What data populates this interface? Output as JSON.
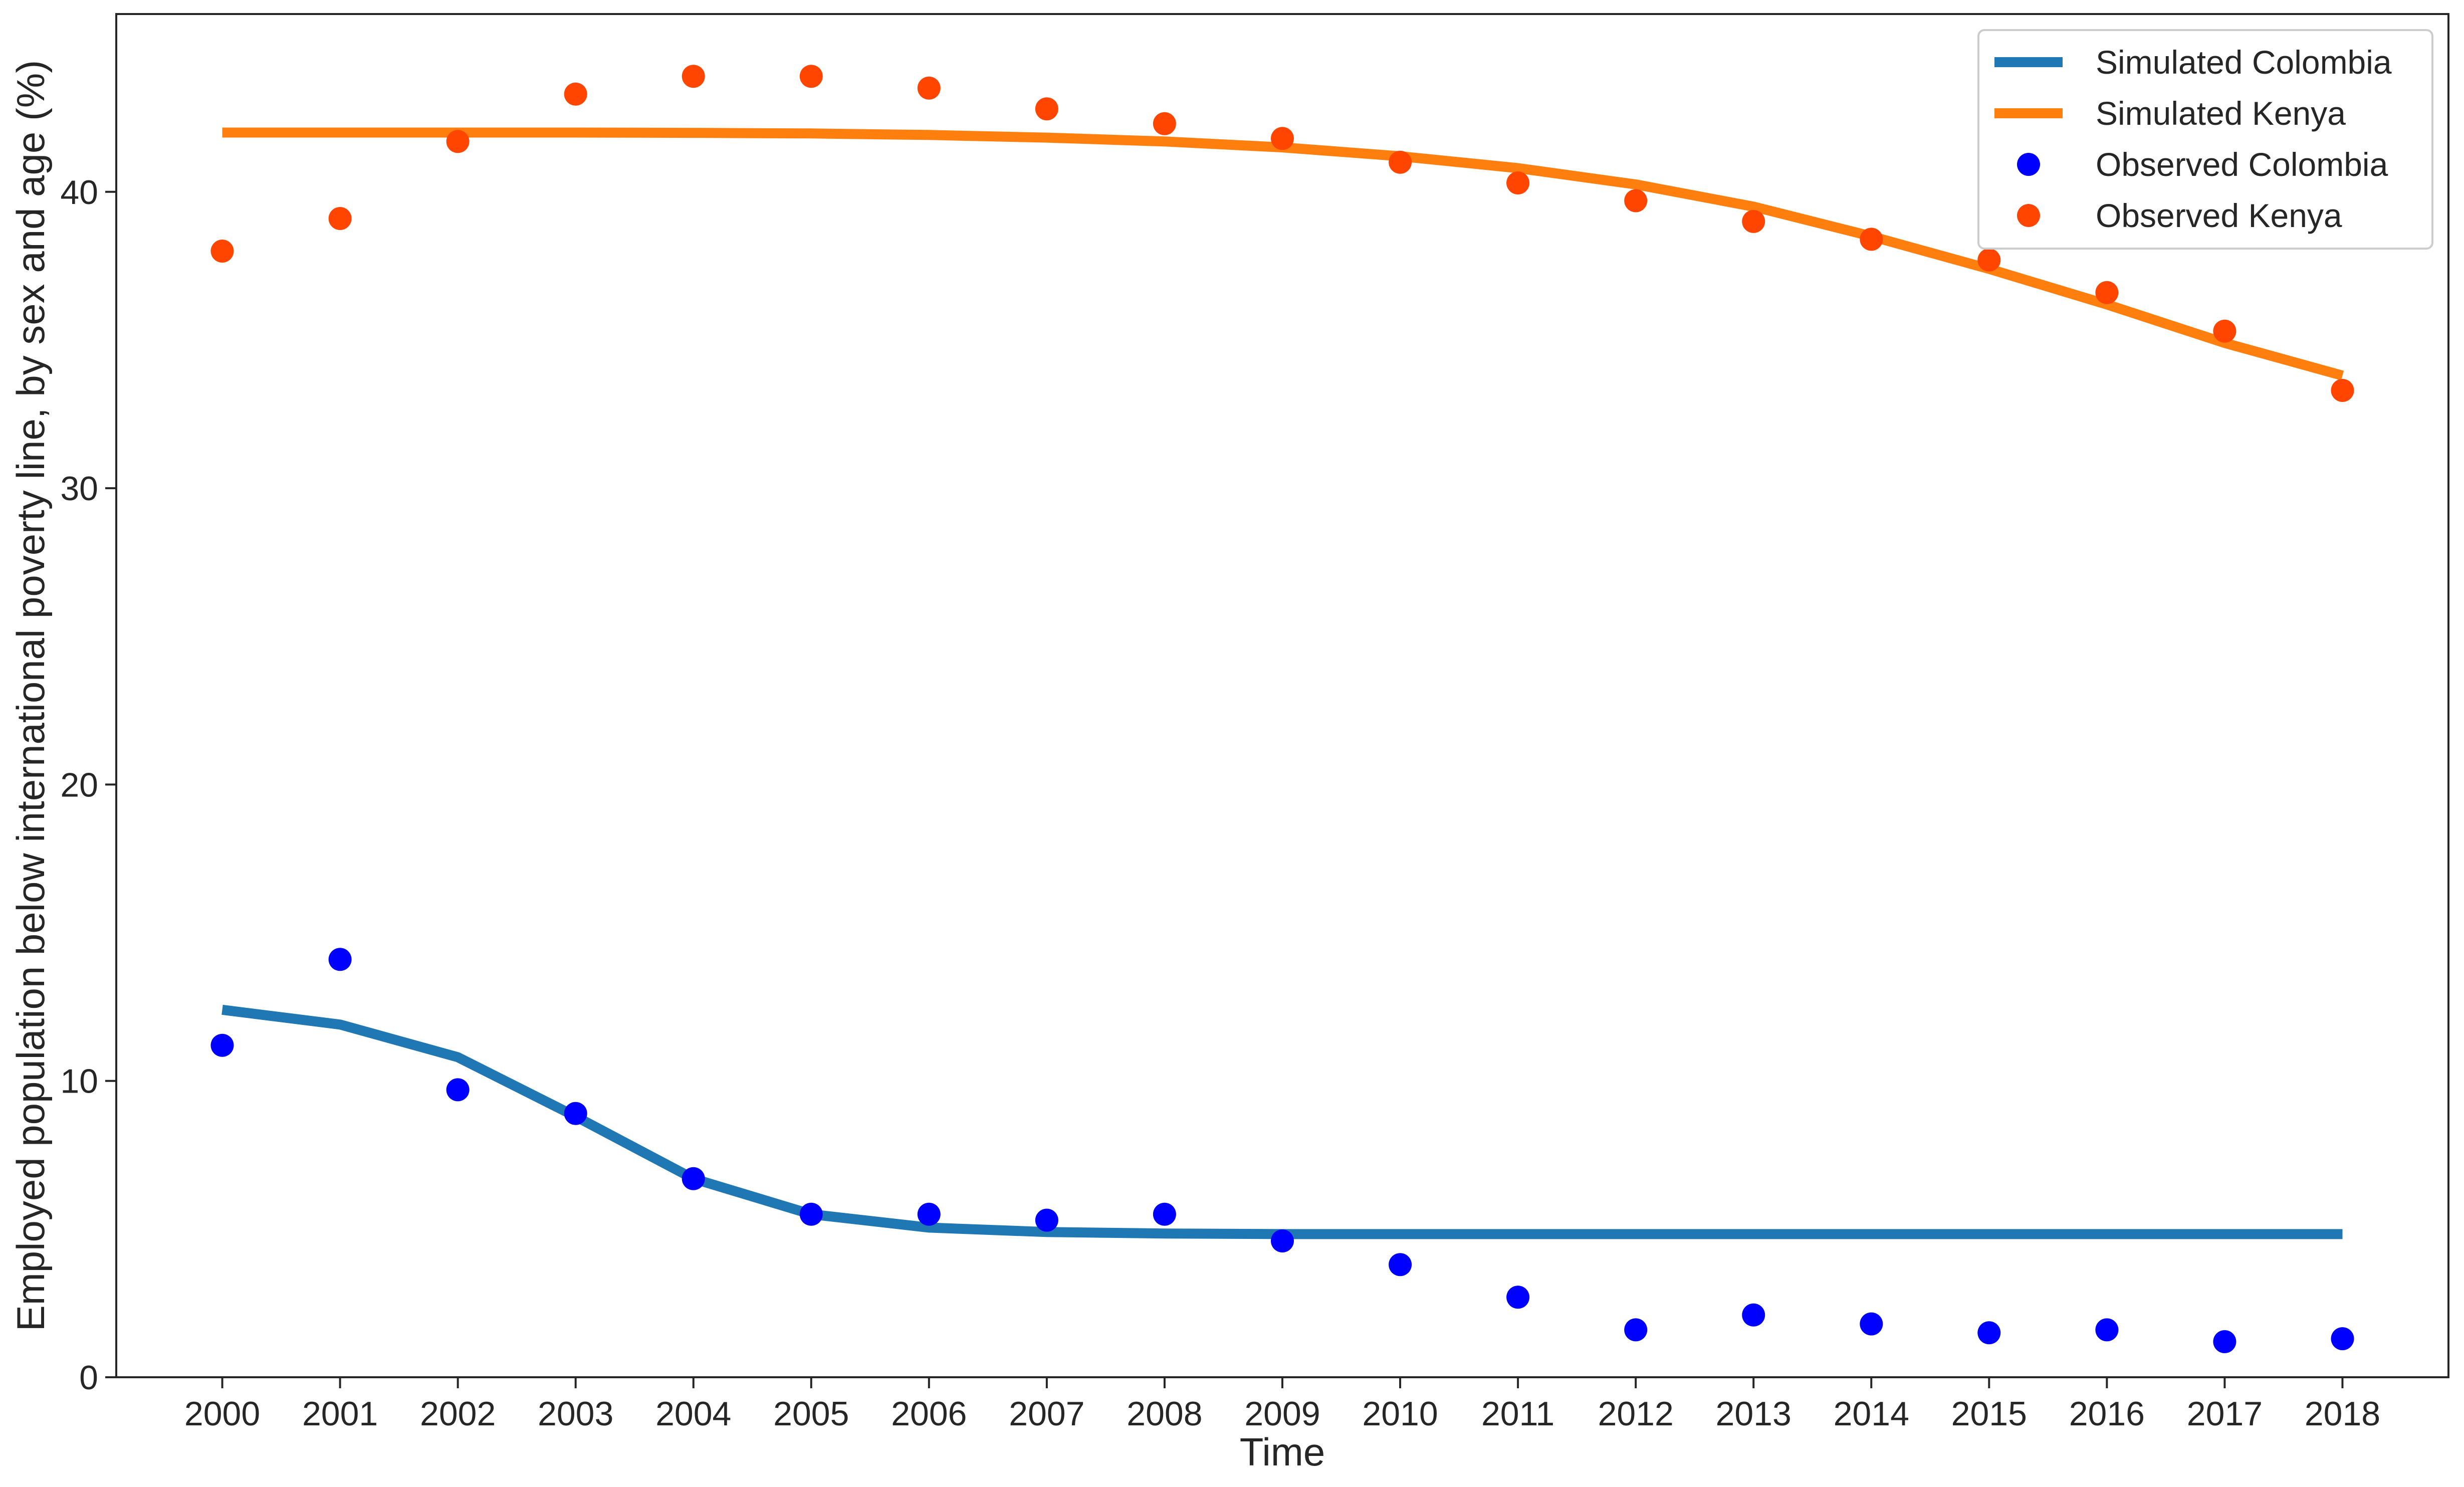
{
  "chart_data": {
    "type": "line",
    "title": "",
    "xlabel": "Time",
    "ylabel": "Employed population below international poverty line, by sex and age (%)",
    "x": [
      2000,
      2001,
      2002,
      2003,
      2004,
      2005,
      2006,
      2007,
      2008,
      2009,
      2010,
      2011,
      2012,
      2013,
      2014,
      2015,
      2016,
      2017,
      2018
    ],
    "x_tick_labels": [
      "2000",
      "2001",
      "2002",
      "2003",
      "2004",
      "2005",
      "2006",
      "2007",
      "2008",
      "2009",
      "2010",
      "2011",
      "2012",
      "2013",
      "2014",
      "2015",
      "2016",
      "2017",
      "2018"
    ],
    "ylim": [
      0,
      46
    ],
    "y_ticks": [
      0,
      10,
      20,
      30,
      40
    ],
    "y_tick_labels": [
      "0",
      "10",
      "20",
      "30",
      "40"
    ],
    "grid": false,
    "legend_position": "top-right",
    "series": [
      {
        "name": "Simulated Colombia",
        "kind": "line",
        "color": "#1f77b4",
        "values": [
          12.4,
          11.9,
          10.8,
          8.8,
          6.7,
          5.5,
          5.05,
          4.9,
          4.85,
          4.83,
          4.83,
          4.83,
          4.83,
          4.83,
          4.83,
          4.83,
          4.83,
          4.83,
          4.83
        ]
      },
      {
        "name": "Simulated Kenya",
        "kind": "line",
        "color": "#ff7f0e",
        "values": [
          42.0,
          42.0,
          42.0,
          42.0,
          41.99,
          41.97,
          41.92,
          41.83,
          41.7,
          41.5,
          41.2,
          40.8,
          40.25,
          39.5,
          38.5,
          37.4,
          36.2,
          34.9,
          33.8
        ]
      },
      {
        "name": "Observed Colombia",
        "kind": "scatter",
        "color": "#0000ff",
        "values": [
          11.2,
          14.1,
          9.7,
          8.9,
          6.7,
          5.5,
          5.5,
          5.3,
          5.5,
          4.6,
          3.8,
          2.7,
          1.6,
          2.1,
          1.8,
          1.5,
          1.6,
          1.2,
          1.3
        ]
      },
      {
        "name": "Observed Kenya",
        "kind": "scatter",
        "color": "#ff4500",
        "values": [
          38.0,
          39.1,
          41.7,
          43.3,
          43.9,
          43.9,
          43.5,
          42.8,
          42.3,
          41.8,
          41.0,
          40.3,
          39.7,
          39.0,
          38.4,
          37.7,
          36.6,
          35.3,
          33.3
        ]
      }
    ]
  }
}
